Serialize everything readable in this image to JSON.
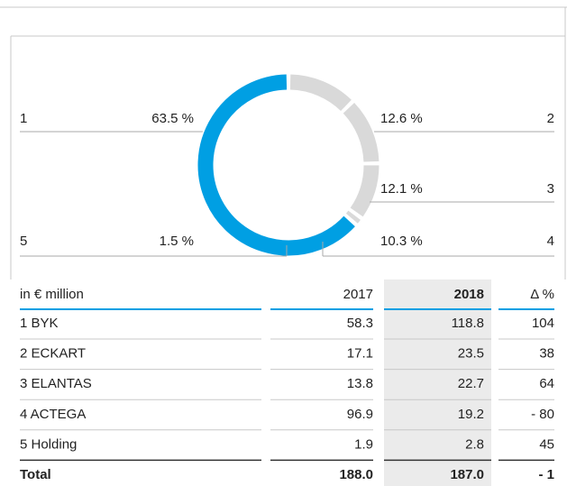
{
  "chart_data": {
    "type": "donut",
    "categories": [
      "1",
      "2",
      "3",
      "4",
      "5"
    ],
    "values": [
      63.5,
      12.6,
      12.1,
      10.3,
      1.5
    ],
    "value_labels": [
      "63.5 %",
      "12.6 %",
      "12.1 %",
      "10.3 %",
      "1.5 %"
    ],
    "colors": [
      "#009fe3",
      "#d9d9d9",
      "#d9d9d9",
      "#d9d9d9",
      "#d9d9d9"
    ]
  },
  "table": {
    "header": [
      "in € million",
      "2017",
      "2018",
      "Δ %"
    ],
    "rows": [
      [
        "1 BYK",
        "58.3",
        "118.8",
        "104"
      ],
      [
        "2 ECKART",
        "17.1",
        "23.5",
        "38"
      ],
      [
        "3 ELANTAS",
        "13.8",
        "22.7",
        "64"
      ],
      [
        "4 ACTEGA",
        "96.9",
        "19.2",
        "- 80"
      ],
      [
        "5 Holding",
        "1.9",
        "2.8",
        "45"
      ],
      [
        "Total",
        "188.0",
        "187.0",
        "- 1"
      ]
    ]
  }
}
